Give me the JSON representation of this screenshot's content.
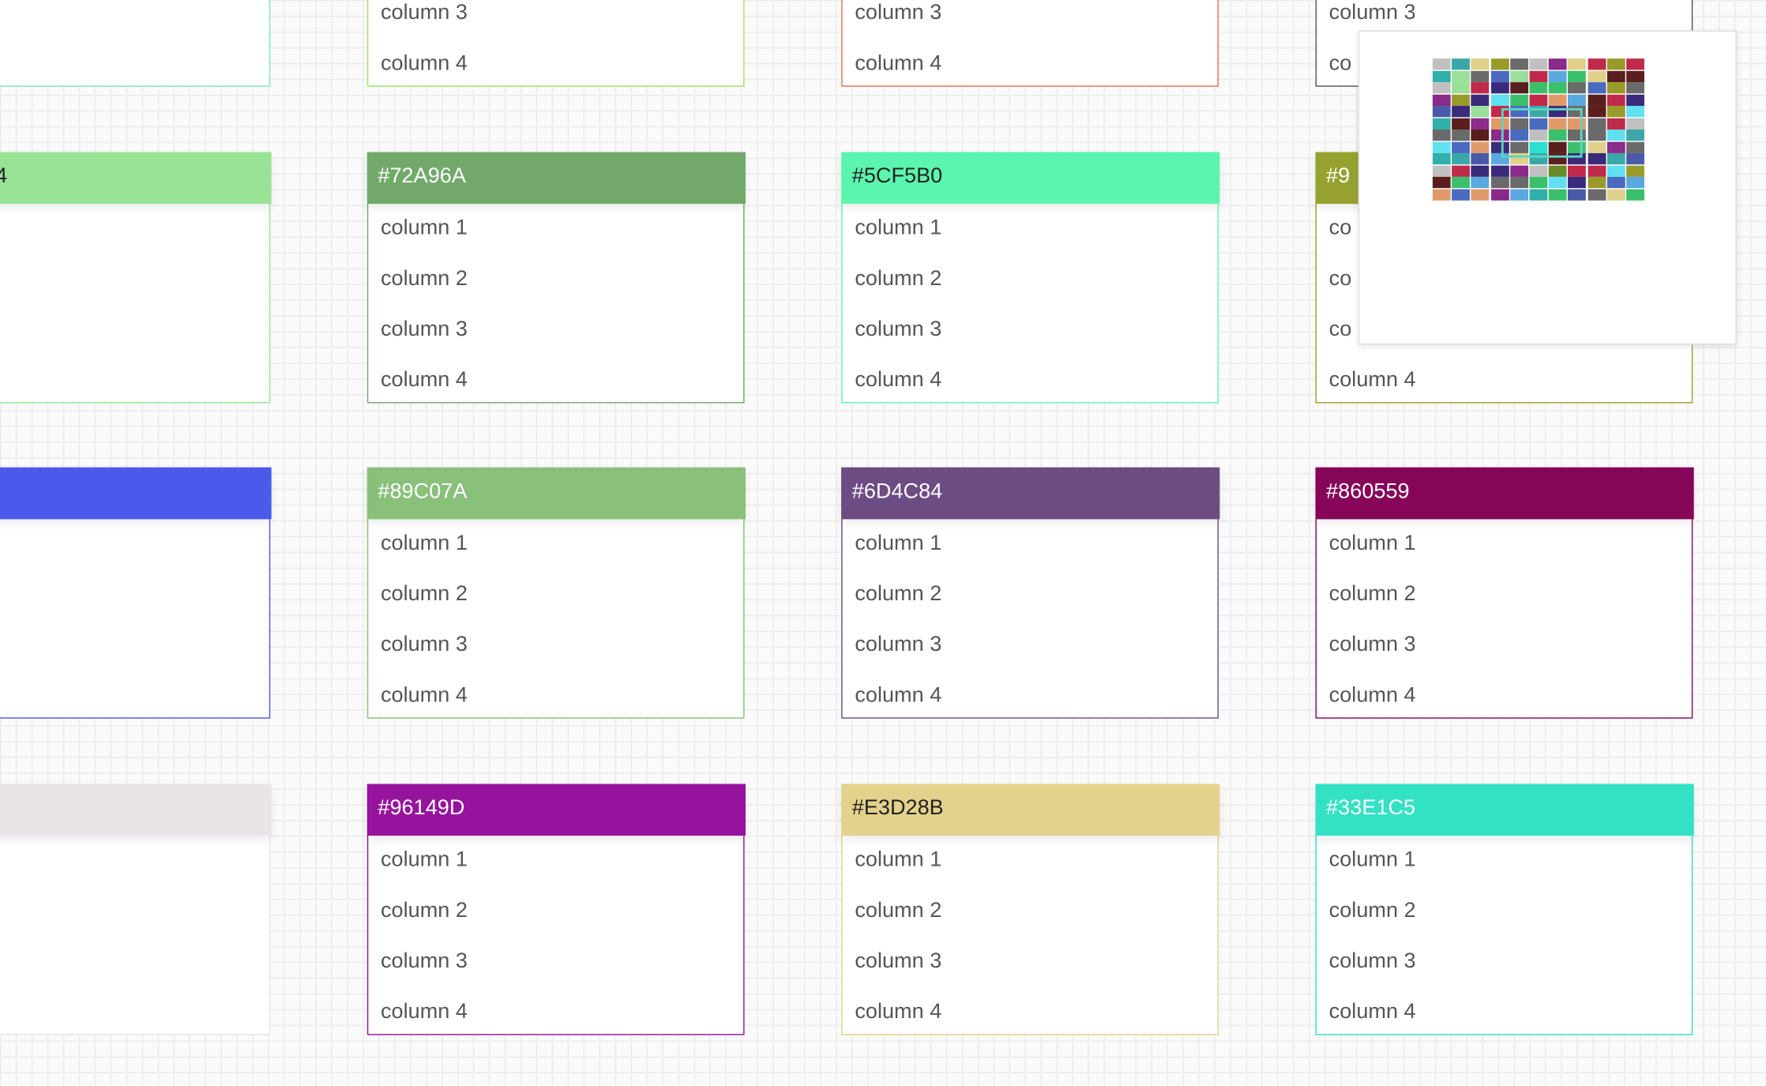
{
  "tables": [
    {
      "color": "#7fe3c8"
    },
    {
      "color": "#a3e060",
      "rows": [
        "column 3",
        "column 4"
      ]
    },
    {
      "color": "#e8704f",
      "rows": [
        "column 3",
        "column 4"
      ]
    },
    {
      "color": "#555555",
      "rows": [
        "column 3",
        "co"
      ]
    },
    {
      "header": "4",
      "color": "#98e396"
    },
    {
      "header": "#72A96A",
      "color": "#72A96A",
      "rows": [
        "column 1",
        "column 2",
        "column 3",
        "column 4"
      ]
    },
    {
      "header": "#5CF5B0",
      "color": "#5CF5B0",
      "rows": [
        "column 1",
        "column 2",
        "column 3",
        "column 4"
      ]
    },
    {
      "header": "#9",
      "color": "#97a12f",
      "rows": [
        "co",
        "co",
        "co",
        "column 4"
      ]
    },
    {
      "color": "#4c5aec"
    },
    {
      "header": "#89C07A",
      "color": "#89C07A",
      "rows": [
        "column 1",
        "column 2",
        "column 3",
        "column 4"
      ]
    },
    {
      "header": "#6D4C84",
      "color": "#6D4C84",
      "rows": [
        "column 1",
        "column 2",
        "column 3",
        "column 4"
      ]
    },
    {
      "header": "#860559",
      "color": "#860559",
      "rows": [
        "column 1",
        "column 2",
        "column 3",
        "column 4"
      ]
    },
    {
      "color": "#e8e4e8"
    },
    {
      "header": "#96149D",
      "color": "#96149D",
      "rows": [
        "column 1",
        "column 2",
        "column 3",
        "column 4"
      ]
    },
    {
      "header": "#E3D28B",
      "color": "#E3D28B",
      "rows": [
        "column 1",
        "column 2",
        "column 3",
        "column 4"
      ]
    },
    {
      "header": "#33E1C5",
      "color": "#33E1C5",
      "rows": [
        "column 1",
        "column 2",
        "column 3",
        "column 4"
      ]
    }
  ]
}
